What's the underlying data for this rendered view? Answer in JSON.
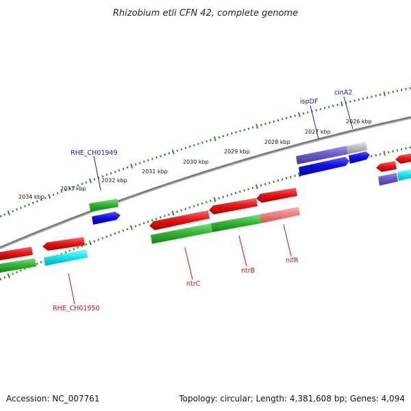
{
  "title": "Rhizobium etli CFN 42, complete genome",
  "accession": "Accession: NC_007761",
  "topology": "Topology: circular; Length: 4,381,608 bp; Genes: 4,094",
  "colors": {
    "backbone": "#888888",
    "tick": "#2a8a2a",
    "label_top": "#1a1aa0",
    "label_bottom": "#c01010",
    "red": "#e81818",
    "green": "#33b833",
    "blue": "#1010e8",
    "purple": "#6a5acd",
    "cyan": "#18e8f0",
    "grey": "#bdbdbd",
    "pink": "#f08080"
  },
  "kbp_labels": [
    "2026 kbp",
    "2027 kbp",
    "2028 kbp",
    "2029 kbp",
    "2030 kbp",
    "2031 kbp",
    "2032 kbp",
    "2033 kbp",
    "2034 kbp"
  ],
  "gene_labels": {
    "cinA2": "cinA2",
    "ispDF": "ispDF",
    "RHE_CH01949": "RHE_CH01949",
    "RHE_CH01950": "RHE_CH01950",
    "ntrC": "ntrC",
    "ntrB": "ntrB",
    "nifR": "nifR"
  }
}
